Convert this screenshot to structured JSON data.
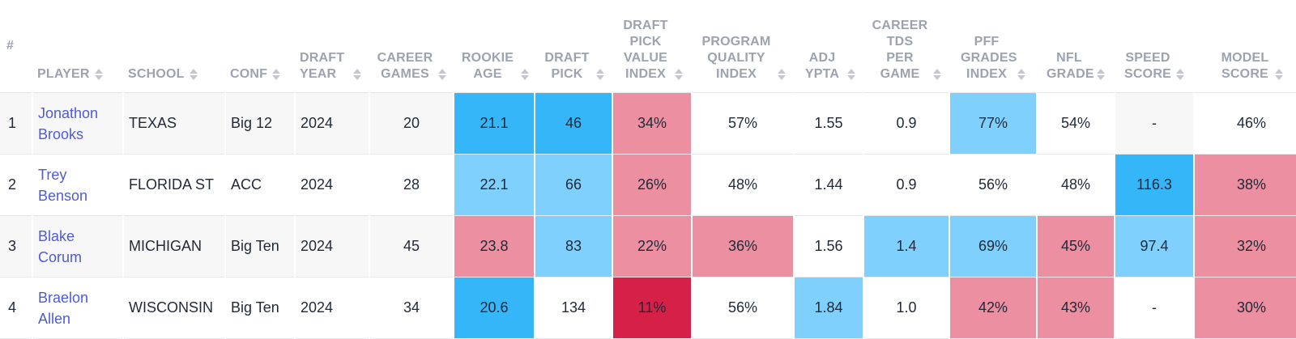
{
  "colors": {
    "blue_dark": "#35b6f8",
    "blue_light": "#7fd0fd",
    "pink_light": "#ec8fa1",
    "pink_dark": "#d52047",
    "player_link": "#4f5bd5",
    "header_text": "#9ca3af"
  },
  "headers": {
    "hash": "#",
    "player": "PLAYER",
    "school": "SCHOOL",
    "conf": "CONF",
    "draft_year": "DRAFT YEAR",
    "career_games": "CAREER GAMES",
    "rookie_age": "ROOKIE AGE",
    "draft_pick": "DRAFT PICK",
    "draft_pick_value_index": "DRAFT PICK VALUE INDEX",
    "program_quality_index": "PROGRAM QUALITY INDEX",
    "adj_ypta": "ADJ YPTA",
    "career_tds_per_game": "CAREER TDS PER GAME",
    "pff_grades_index": "PFF GRADES INDEX",
    "nfl_grade": "NFL GRADE",
    "speed_score": "SPEED SCORE",
    "model_score": "MODEL SCORE"
  },
  "rows": [
    {
      "rank": "1",
      "player": "Jonathon Brooks",
      "school": "TEXAS",
      "conf": "Big 12",
      "draft_year": "2024",
      "career_games": "20",
      "rookie_age": "21.1",
      "draft_pick": "46",
      "draft_pick_value_index": "34%",
      "program_quality_index": "57%",
      "adj_ypta": "1.55",
      "career_tds_per_game": "0.9",
      "pff_grades_index": "77%",
      "nfl_grade": "54%",
      "speed_score": "-",
      "model_score": "46%"
    },
    {
      "rank": "2",
      "player": "Trey Benson",
      "school": "FLORIDA ST",
      "conf": "ACC",
      "draft_year": "2024",
      "career_games": "28",
      "rookie_age": "22.1",
      "draft_pick": "66",
      "draft_pick_value_index": "26%",
      "program_quality_index": "48%",
      "adj_ypta": "1.44",
      "career_tds_per_game": "0.9",
      "pff_grades_index": "56%",
      "nfl_grade": "48%",
      "speed_score": "116.3",
      "model_score": "38%"
    },
    {
      "rank": "3",
      "player": "Blake Corum",
      "school": "MICHIGAN",
      "conf": "Big Ten",
      "draft_year": "2024",
      "career_games": "45",
      "rookie_age": "23.8",
      "draft_pick": "83",
      "draft_pick_value_index": "22%",
      "program_quality_index": "36%",
      "adj_ypta": "1.56",
      "career_tds_per_game": "1.4",
      "pff_grades_index": "69%",
      "nfl_grade": "45%",
      "speed_score": "97.4",
      "model_score": "32%"
    },
    {
      "rank": "4",
      "player": "Braelon Allen",
      "school": "WISCONSIN",
      "conf": "Big Ten",
      "draft_year": "2024",
      "career_games": "34",
      "rookie_age": "20.6",
      "draft_pick": "134",
      "draft_pick_value_index": "11%",
      "program_quality_index": "56%",
      "adj_ypta": "1.84",
      "career_tds_per_game": "1.0",
      "pff_grades_index": "42%",
      "nfl_grade": "43%",
      "speed_score": "-",
      "model_score": "30%"
    }
  ]
}
